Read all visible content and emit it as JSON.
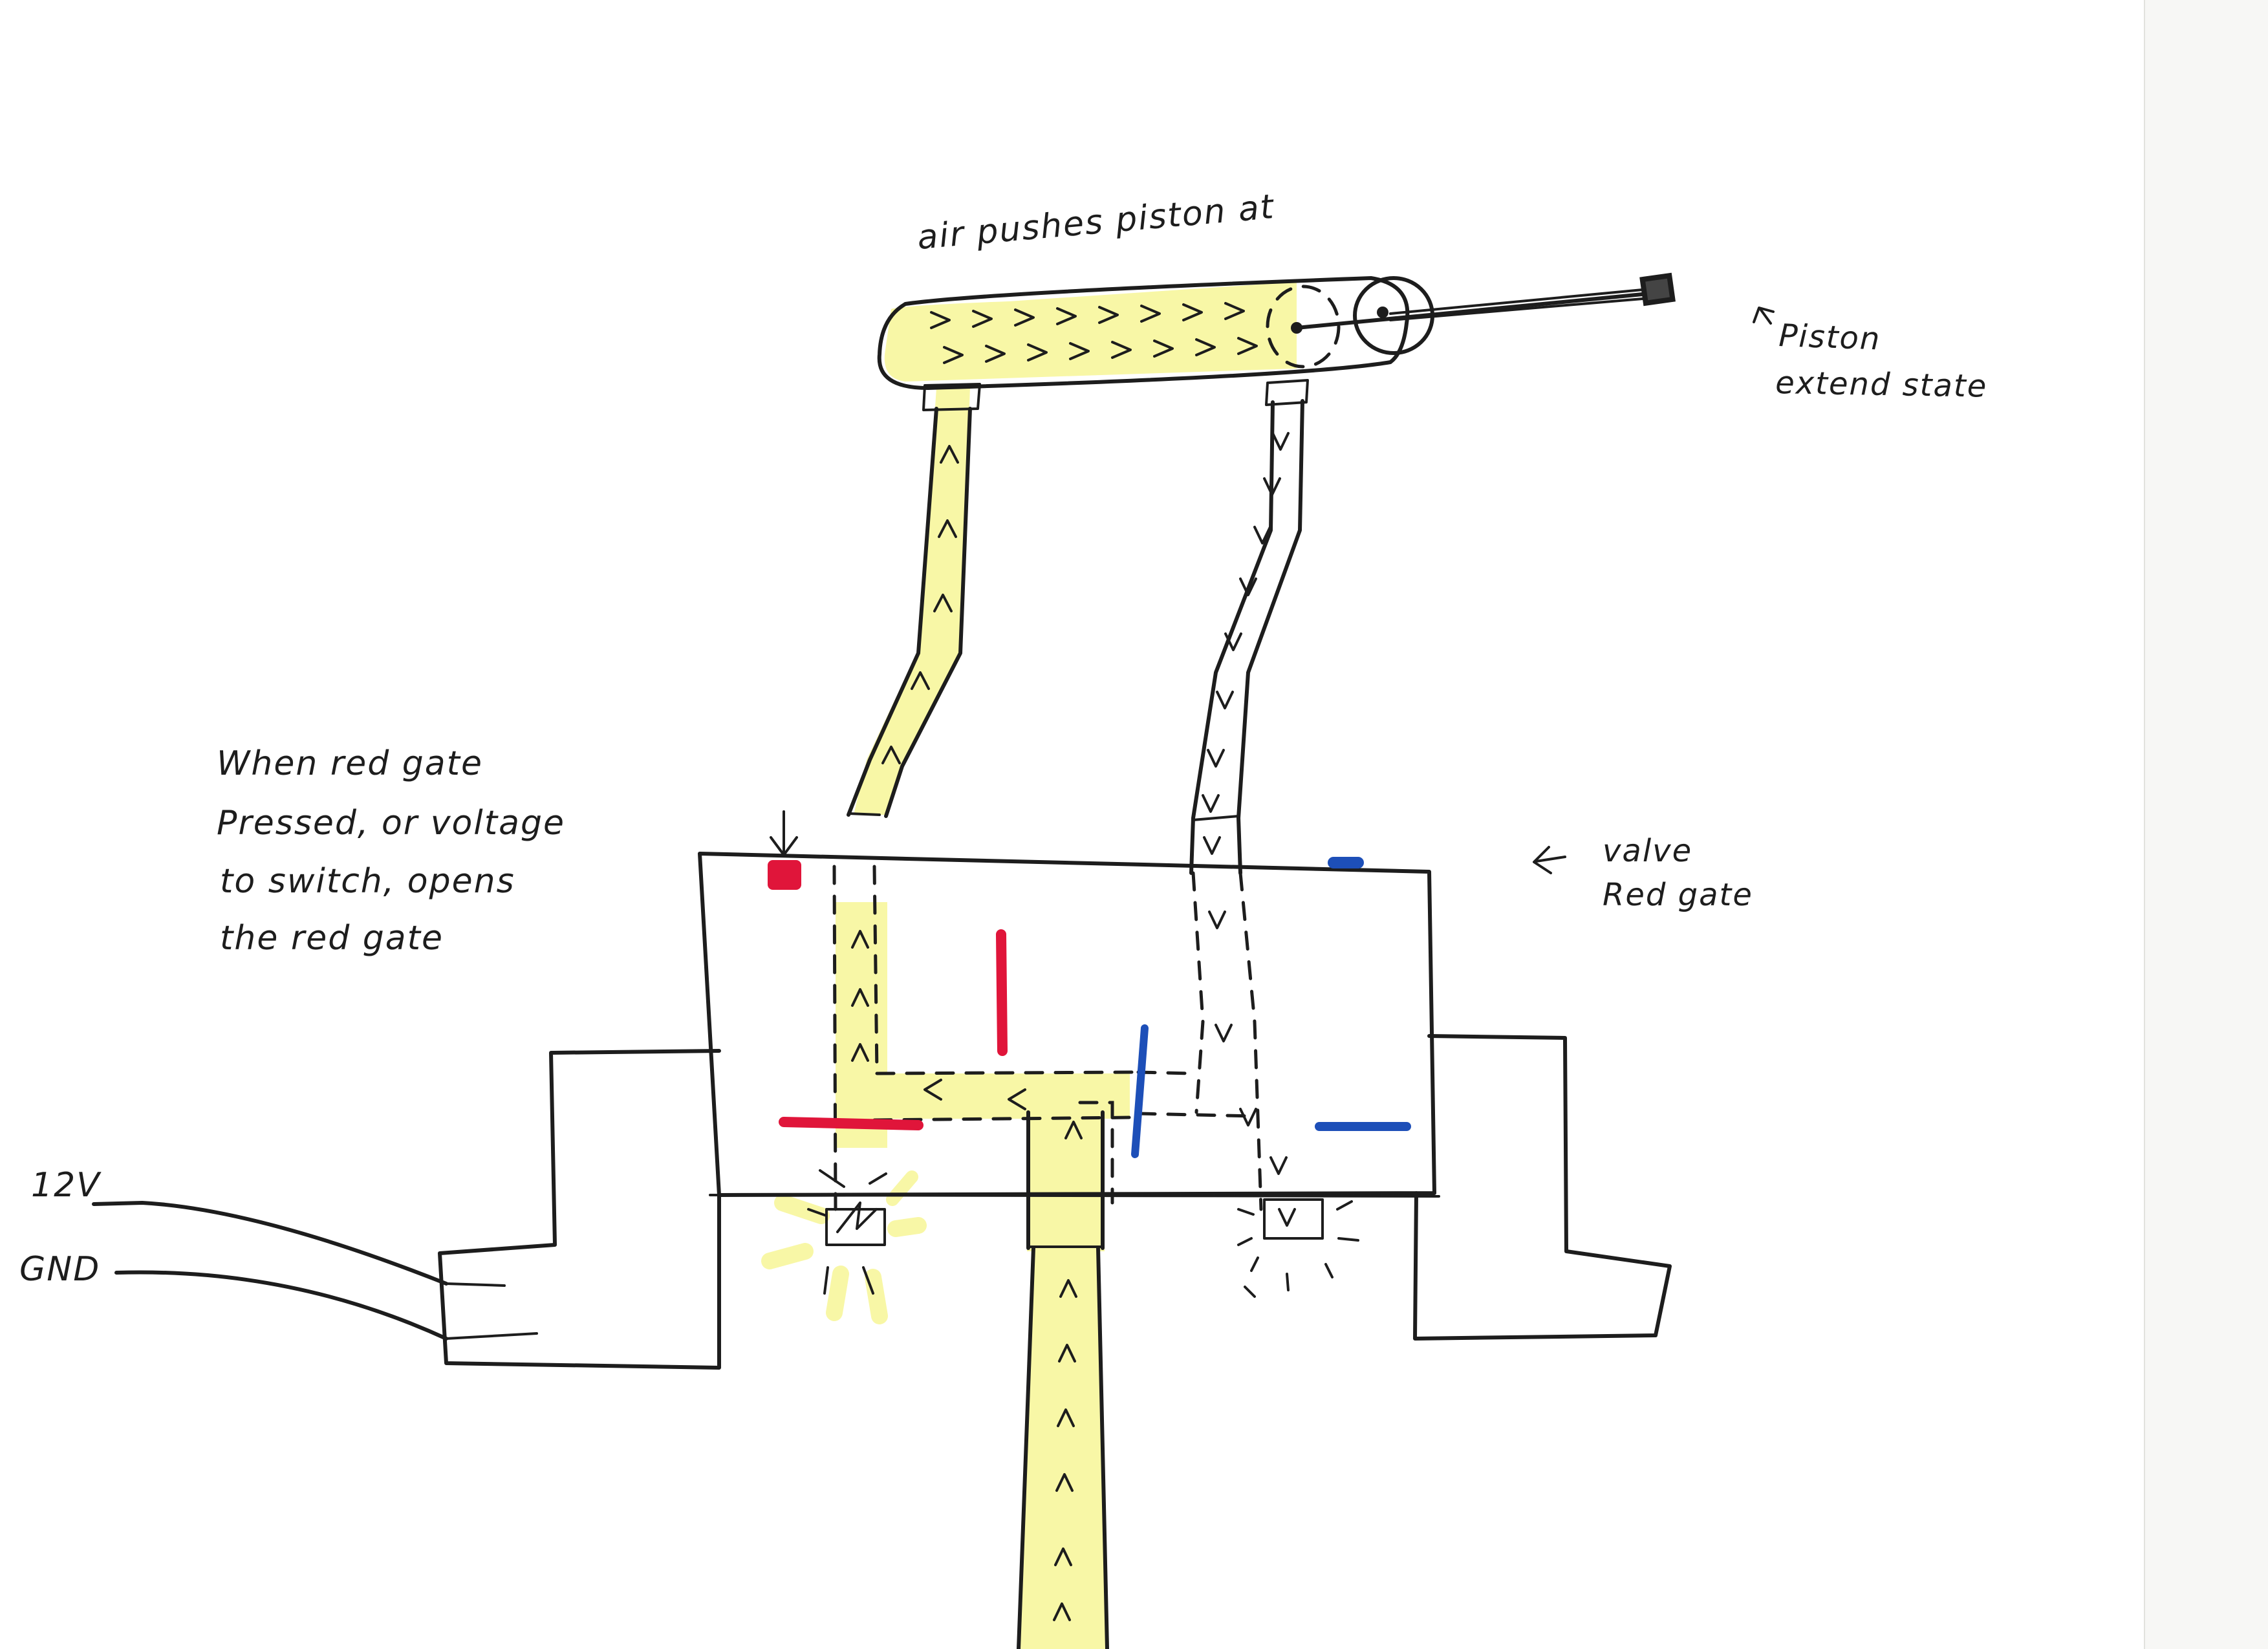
{
  "annotations": {
    "piston_note": "air pushes piston at",
    "piston_state_line1": "Piston",
    "piston_state_line2": "extend state",
    "red_gate_line1": "When red gate",
    "red_gate_line2": "Pressed, or voltage",
    "red_gate_line3": "to switch, opens",
    "red_gate_line4": "the red gate",
    "valve_line1": "valve",
    "valve_line2": "Red gate",
    "label_12v": "12V",
    "label_gnd": "GND"
  },
  "colors": {
    "ink": "#1d1d1d",
    "highlight": "#f8f7a6",
    "red_gate": "#e0153a",
    "blue_gate": "#1d4fb8"
  }
}
